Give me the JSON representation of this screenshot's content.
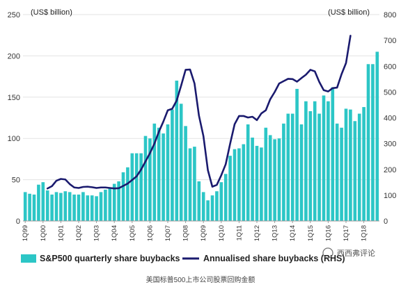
{
  "chart_data": {
    "type": "bar",
    "left_axis_unit": "(US$ billion)",
    "right_axis_unit": "(US$ billion)",
    "left_axis": {
      "ylim": [
        0,
        250
      ],
      "ticks": [
        "0",
        "50",
        "100",
        "150",
        "200",
        "250"
      ]
    },
    "right_axis": {
      "ylim": [
        0,
        800
      ],
      "ticks": [
        "0",
        "100",
        "200",
        "300",
        "400",
        "500",
        "600",
        "700",
        "800"
      ]
    },
    "x_tick_labels": [
      "1Q99",
      "1Q00",
      "1Q01",
      "1Q02",
      "1Q03",
      "1Q04",
      "1Q05",
      "1Q06",
      "1Q07",
      "1Q08",
      "1Q09",
      "1Q10",
      "1Q11",
      "1Q12",
      "1Q13",
      "1Q14",
      "1Q15",
      "1Q16",
      "1Q17",
      "1Q18"
    ],
    "x_tick_start_index": 0,
    "x_tick_step": 4,
    "series": [
      {
        "name": "S&P500 quarterly share buybacks",
        "type": "bar",
        "axis": "left",
        "color": "#2cc6c6",
        "values": [
          35,
          33,
          32,
          44,
          47,
          37,
          32,
          35,
          34,
          36,
          35,
          32,
          32,
          35,
          31,
          31,
          30,
          35,
          38,
          40,
          45,
          48,
          59,
          65,
          82,
          82,
          82,
          103,
          100,
          118,
          113,
          106,
          117,
          135,
          170,
          142,
          115,
          88,
          90,
          48,
          35,
          25,
          31,
          36,
          47,
          57,
          79,
          87,
          88,
          93,
          117,
          101,
          91,
          89,
          113,
          104,
          99,
          100,
          118,
          130,
          130,
          160,
          117,
          145,
          133,
          145,
          130,
          152,
          145,
          162,
          118,
          113,
          136,
          135,
          121,
          130,
          138,
          190,
          190,
          205
        ]
      },
      {
        "name": "Annualised share buybacks (RHS)",
        "type": "line",
        "axis": "right",
        "color": "#1a1a6e",
        "values": [
          126,
          135,
          156,
          163,
          161,
          143,
          130,
          128,
          132,
          133,
          131,
          128,
          130,
          130,
          128,
          126,
          127,
          136,
          145,
          159,
          173,
          199,
          231,
          263,
          300,
          346,
          385,
          429,
          435,
          467,
          525,
          586,
          587,
          533,
          408,
          329,
          197,
          133,
          140,
          177,
          220,
          300,
          375,
          407,
          407,
          401,
          404,
          391,
          417,
          429,
          472,
          500,
          533,
          542,
          551,
          550,
          540,
          554,
          567,
          586,
          580,
          539,
          507,
          502,
          515,
          517,
          569,
          612,
          718
        ]
      }
    ]
  },
  "caption": "美国标普500上市公司股票回购金额",
  "watermark": "西西弗评论"
}
